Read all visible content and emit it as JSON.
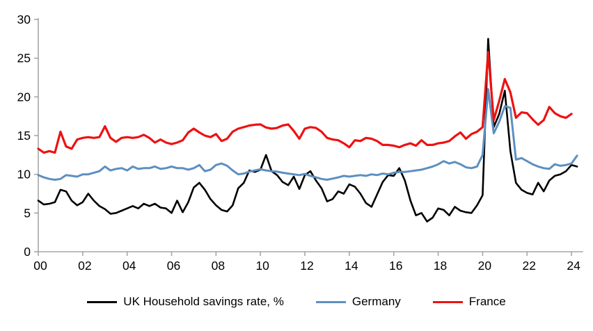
{
  "chart_data": {
    "type": "line",
    "title": "",
    "xlabel": "",
    "ylabel": "",
    "x_start": "2000 Q1",
    "x_frequency": "quarterly",
    "x_tick_labels": [
      "00",
      "02",
      "04",
      "06",
      "08",
      "10",
      "12",
      "14",
      "16",
      "18",
      "20",
      "22",
      "24"
    ],
    "y_tick_labels": [
      "0",
      "5",
      "10",
      "15",
      "20",
      "25",
      "30"
    ],
    "y_ticks": [
      0,
      5,
      10,
      15,
      20,
      25,
      30
    ],
    "ylim": [
      0,
      30
    ],
    "grid": false,
    "legend_position": "bottom",
    "axis_color": "#a6a6a6",
    "series": [
      {
        "name": "UK Household savings rate, %",
        "color": "#000000",
        "values": [
          6.6,
          6.1,
          6.2,
          6.4,
          8.0,
          7.8,
          6.6,
          6.0,
          6.4,
          7.5,
          6.6,
          5.9,
          5.5,
          4.9,
          5.0,
          5.3,
          5.6,
          5.9,
          5.6,
          6.2,
          5.9,
          6.2,
          5.7,
          5.6,
          5.0,
          6.6,
          5.1,
          6.4,
          8.3,
          8.9,
          8.0,
          6.8,
          6.0,
          5.4,
          5.2,
          6.0,
          8.2,
          8.9,
          10.5,
          10.3,
          10.6,
          12.5,
          10.4,
          9.9,
          9.0,
          8.6,
          9.7,
          8.1,
          9.9,
          10.4,
          9.2,
          8.2,
          6.5,
          6.8,
          7.8,
          7.5,
          8.7,
          8.4,
          7.5,
          6.3,
          5.8,
          7.4,
          9.0,
          9.9,
          9.8,
          10.8,
          9.2,
          6.6,
          4.7,
          5.0,
          3.9,
          4.4,
          5.6,
          5.4,
          4.7,
          5.8,
          5.3,
          5.1,
          5.0,
          6.0,
          7.3,
          27.5,
          16.1,
          17.8,
          20.8,
          13.0,
          8.9,
          8.0,
          7.6,
          7.4,
          8.9,
          7.8,
          9.2,
          9.8,
          10.0,
          10.4,
          11.2,
          11.0
        ]
      },
      {
        "name": "Germany",
        "color": "#5d8fc0",
        "values": [
          9.9,
          9.6,
          9.4,
          9.3,
          9.4,
          9.9,
          9.8,
          9.7,
          10.0,
          10.0,
          10.2,
          10.4,
          11.0,
          10.5,
          10.7,
          10.8,
          10.5,
          11.0,
          10.7,
          10.8,
          10.8,
          11.0,
          10.7,
          10.8,
          11.0,
          10.8,
          10.8,
          10.6,
          10.8,
          11.2,
          10.4,
          10.6,
          11.2,
          11.4,
          11.1,
          10.5,
          10.0,
          10.1,
          10.35,
          10.5,
          10.65,
          10.5,
          10.4,
          10.35,
          10.2,
          10.1,
          10.0,
          9.9,
          10.05,
          9.8,
          9.6,
          9.4,
          9.3,
          9.45,
          9.6,
          9.8,
          9.7,
          9.8,
          9.9,
          9.8,
          10.0,
          9.9,
          10.1,
          10.0,
          10.2,
          10.3,
          10.3,
          10.4,
          10.5,
          10.6,
          10.8,
          11.0,
          11.3,
          11.7,
          11.4,
          11.6,
          11.3,
          10.9,
          10.8,
          11.0,
          12.5,
          21.0,
          15.3,
          16.8,
          18.8,
          18.6,
          11.9,
          12.1,
          11.7,
          11.3,
          11.0,
          10.8,
          10.7,
          11.3,
          11.1,
          11.2,
          11.4,
          12.4
        ]
      },
      {
        "name": "France",
        "color": "#ee1111",
        "values": [
          13.3,
          12.8,
          13.0,
          12.8,
          15.5,
          13.6,
          13.3,
          14.5,
          14.7,
          14.8,
          14.7,
          14.8,
          16.2,
          14.7,
          14.2,
          14.7,
          14.8,
          14.7,
          14.8,
          15.1,
          14.7,
          14.1,
          14.5,
          14.1,
          13.9,
          14.1,
          14.4,
          15.4,
          15.9,
          15.4,
          15.0,
          14.8,
          15.2,
          14.3,
          14.6,
          15.5,
          15.9,
          16.1,
          16.3,
          16.4,
          16.45,
          16.05,
          15.9,
          16.0,
          16.3,
          16.45,
          15.6,
          14.6,
          15.9,
          16.1,
          16.0,
          15.5,
          14.7,
          14.5,
          14.4,
          14.0,
          13.5,
          14.4,
          14.3,
          14.7,
          14.6,
          14.3,
          13.8,
          13.8,
          13.7,
          13.5,
          13.8,
          14.0,
          13.7,
          14.4,
          13.8,
          13.8,
          14.0,
          14.1,
          14.3,
          14.9,
          15.4,
          14.6,
          15.2,
          15.5,
          16.1,
          25.8,
          17.0,
          19.5,
          22.3,
          20.6,
          17.3,
          18.0,
          17.9,
          17.1,
          16.4,
          17.0,
          18.7,
          17.9,
          17.5,
          17.3,
          17.8
        ]
      }
    ]
  },
  "legend": {
    "uk_label": "UK Household savings rate, %",
    "germany_label": "Germany",
    "france_label": "France"
  }
}
